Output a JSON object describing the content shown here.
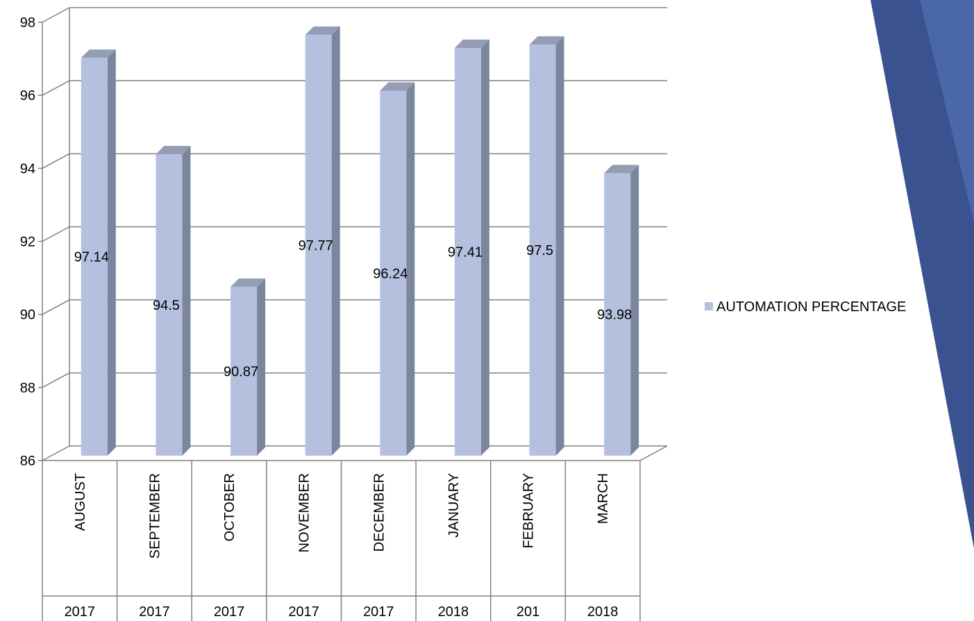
{
  "chart_data": {
    "type": "bar",
    "categories": [
      "AUGUST",
      "SEPTEMBER",
      "OCTOBER",
      "NOVEMBER",
      "DECEMBER",
      "JANUARY",
      "FEBRUARY",
      "MARCH"
    ],
    "years": [
      "2017",
      "2017",
      "2017",
      "2017",
      "2017",
      "2018",
      "201",
      "2018"
    ],
    "series": [
      {
        "name": "AUTOMATION PERCENTAGE",
        "values": [
          97.14,
          94.5,
          90.87,
          97.77,
          96.24,
          97.41,
          97.5,
          93.98
        ],
        "labels": [
          "97.14",
          "94.5",
          "90.87",
          "97.77",
          "96.24",
          "97.41",
          "97.5",
          "93.98"
        ]
      }
    ],
    "ylim": [
      86,
      98
    ],
    "yticks": [
      "86",
      "88",
      "90",
      "92",
      "94",
      "96",
      "98"
    ],
    "grid": true,
    "legend_placement": "right",
    "bar3d": true,
    "colors": {
      "bar_front": "#b4c0de",
      "bar_side": "#7b869e",
      "bar_top": "#939db4",
      "gridline": "#808080",
      "decoration_dark": "#3a5290",
      "decoration_light": "#4a68a8"
    }
  }
}
